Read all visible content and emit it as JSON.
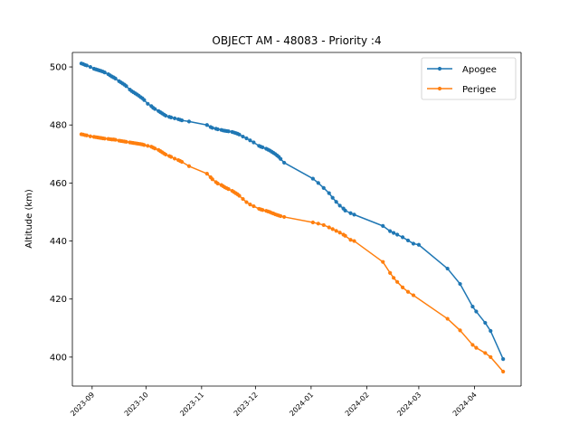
{
  "chart_data": {
    "type": "line",
    "title": "OBJECT AM - 48083 - Priority :4",
    "xlabel": "",
    "ylabel": "Altitude (km)",
    "xlim": [
      "2023-08-21",
      "2024-04-27"
    ],
    "ylim": [
      390,
      505
    ],
    "xticks": [
      "2023-09",
      "2023-10",
      "2023-11",
      "2023-12",
      "2024-01",
      "2024-02",
      "2024-03",
      "2024-04"
    ],
    "yticks": [
      400,
      420,
      440,
      460,
      480,
      500
    ],
    "grid": false,
    "legend": "top-right",
    "series": [
      {
        "name": "Apogee",
        "color": "#1f77b4",
        "marker": "circle",
        "points": [
          [
            "2023-08-26",
            501.2
          ],
          [
            "2023-08-27",
            501.0
          ],
          [
            "2023-08-28",
            500.7
          ],
          [
            "2023-08-29",
            500.5
          ],
          [
            "2023-08-31",
            500.0
          ],
          [
            "2023-09-02",
            499.4
          ],
          [
            "2023-09-03",
            499.2
          ],
          [
            "2023-09-04",
            499.0
          ],
          [
            "2023-09-05",
            498.8
          ],
          [
            "2023-09-06",
            498.6
          ],
          [
            "2023-09-07",
            498.4
          ],
          [
            "2023-09-08",
            498.1
          ],
          [
            "2023-09-10",
            497.5
          ],
          [
            "2023-09-11",
            497.1
          ],
          [
            "2023-09-12",
            496.7
          ],
          [
            "2023-09-13",
            496.4
          ],
          [
            "2023-09-14",
            496.0
          ],
          [
            "2023-09-16",
            495.1
          ],
          [
            "2023-09-17",
            494.7
          ],
          [
            "2023-09-18",
            494.3
          ],
          [
            "2023-09-19",
            493.9
          ],
          [
            "2023-09-20",
            493.4
          ],
          [
            "2023-09-22",
            492.2
          ],
          [
            "2023-09-23",
            491.7
          ],
          [
            "2023-09-24",
            491.3
          ],
          [
            "2023-09-25",
            490.9
          ],
          [
            "2023-09-26",
            490.5
          ],
          [
            "2023-09-27",
            490.1
          ],
          [
            "2023-09-28",
            489.6
          ],
          [
            "2023-09-29",
            489.2
          ],
          [
            "2023-09-30",
            488.6
          ],
          [
            "2023-10-02",
            487.3
          ],
          [
            "2023-10-04",
            486.5
          ],
          [
            "2023-10-05",
            485.9
          ],
          [
            "2023-10-06",
            485.5
          ],
          [
            "2023-10-08",
            484.8
          ],
          [
            "2023-10-09",
            484.4
          ],
          [
            "2023-10-10",
            484.0
          ],
          [
            "2023-10-11",
            483.6
          ],
          [
            "2023-10-12",
            483.2
          ],
          [
            "2023-10-14",
            482.8
          ],
          [
            "2023-10-15",
            482.6
          ],
          [
            "2023-10-17",
            482.3
          ],
          [
            "2023-10-19",
            482.0
          ],
          [
            "2023-10-20",
            481.8
          ],
          [
            "2023-10-21",
            481.6
          ],
          [
            "2023-10-25",
            481.2
          ],
          [
            "2023-11-04",
            480.0
          ],
          [
            "2023-11-06",
            479.3
          ],
          [
            "2023-11-07",
            479.0
          ],
          [
            "2023-11-09",
            478.7
          ],
          [
            "2023-11-10",
            478.5
          ],
          [
            "2023-11-12",
            478.3
          ],
          [
            "2023-11-13",
            478.1
          ],
          [
            "2023-11-14",
            478.0
          ],
          [
            "2023-11-15",
            477.9
          ],
          [
            "2023-11-16",
            477.8
          ],
          [
            "2023-11-18",
            477.6
          ],
          [
            "2023-11-19",
            477.4
          ],
          [
            "2023-11-20",
            477.2
          ],
          [
            "2023-11-21",
            477.0
          ],
          [
            "2023-11-22",
            476.7
          ],
          [
            "2023-11-24",
            476.0
          ],
          [
            "2023-11-26",
            475.4
          ],
          [
            "2023-11-28",
            474.7
          ],
          [
            "2023-11-30",
            474.0
          ],
          [
            "2023-12-03",
            472.8
          ],
          [
            "2023-12-04",
            472.5
          ],
          [
            "2023-12-05",
            472.3
          ],
          [
            "2023-12-07",
            471.8
          ],
          [
            "2023-12-08",
            471.5
          ],
          [
            "2023-12-09",
            471.2
          ],
          [
            "2023-12-10",
            470.8
          ],
          [
            "2023-12-11",
            470.4
          ],
          [
            "2023-12-12",
            470.0
          ],
          [
            "2023-12-13",
            469.5
          ],
          [
            "2023-12-14",
            469.0
          ],
          [
            "2023-12-15",
            468.3
          ],
          [
            "2023-12-17",
            467.0
          ],
          [
            "2024-01-02",
            461.5
          ],
          [
            "2024-01-05",
            460.0
          ],
          [
            "2024-01-08",
            458.3
          ],
          [
            "2024-01-11",
            456.5
          ],
          [
            "2024-01-13",
            454.9
          ],
          [
            "2024-01-15",
            453.5
          ],
          [
            "2024-01-17",
            452.2
          ],
          [
            "2024-01-19",
            451.2
          ],
          [
            "2024-01-20",
            450.5
          ],
          [
            "2024-01-23",
            449.6
          ],
          [
            "2024-01-25",
            449.1
          ],
          [
            "2024-02-10",
            445.2
          ],
          [
            "2024-02-14",
            443.4
          ],
          [
            "2024-02-16",
            442.8
          ],
          [
            "2024-02-18",
            442.2
          ],
          [
            "2024-02-21",
            441.3
          ],
          [
            "2024-02-24",
            440.2
          ],
          [
            "2024-02-27",
            439.1
          ],
          [
            "2024-03-01",
            438.7
          ],
          [
            "2024-03-17",
            430.5
          ],
          [
            "2024-03-24",
            425.2
          ],
          [
            "2024-03-31",
            417.4
          ],
          [
            "2024-04-02",
            415.7
          ],
          [
            "2024-04-07",
            411.8
          ],
          [
            "2024-04-10",
            409.0
          ],
          [
            "2024-04-17",
            399.3
          ]
        ]
      },
      {
        "name": "Perigee",
        "color": "#ff7f0e",
        "marker": "circle",
        "points": [
          [
            "2023-08-26",
            476.8
          ],
          [
            "2023-08-27",
            476.7
          ],
          [
            "2023-08-28",
            476.5
          ],
          [
            "2023-08-29",
            476.4
          ],
          [
            "2023-08-31",
            476.1
          ],
          [
            "2023-09-02",
            475.9
          ],
          [
            "2023-09-03",
            475.8
          ],
          [
            "2023-09-04",
            475.7
          ],
          [
            "2023-09-05",
            475.6
          ],
          [
            "2023-09-06",
            475.5
          ],
          [
            "2023-09-07",
            475.4
          ],
          [
            "2023-09-08",
            475.3
          ],
          [
            "2023-09-10",
            475.2
          ],
          [
            "2023-09-11",
            475.1
          ],
          [
            "2023-09-12",
            475.0
          ],
          [
            "2023-09-13",
            475.0
          ],
          [
            "2023-09-14",
            474.9
          ],
          [
            "2023-09-16",
            474.6
          ],
          [
            "2023-09-17",
            474.5
          ],
          [
            "2023-09-18",
            474.4
          ],
          [
            "2023-09-19",
            474.3
          ],
          [
            "2023-09-20",
            474.2
          ],
          [
            "2023-09-22",
            474.0
          ],
          [
            "2023-09-23",
            473.9
          ],
          [
            "2023-09-24",
            473.8
          ],
          [
            "2023-09-25",
            473.7
          ],
          [
            "2023-09-26",
            473.6
          ],
          [
            "2023-09-27",
            473.5
          ],
          [
            "2023-09-28",
            473.4
          ],
          [
            "2023-09-29",
            473.3
          ],
          [
            "2023-09-30",
            473.1
          ],
          [
            "2023-10-02",
            472.8
          ],
          [
            "2023-10-04",
            472.5
          ],
          [
            "2023-10-05",
            472.2
          ],
          [
            "2023-10-06",
            471.9
          ],
          [
            "2023-10-08",
            471.4
          ],
          [
            "2023-10-09",
            471.0
          ],
          [
            "2023-10-10",
            470.6
          ],
          [
            "2023-10-11",
            470.2
          ],
          [
            "2023-10-12",
            469.8
          ],
          [
            "2023-10-14",
            469.3
          ],
          [
            "2023-10-15",
            469.0
          ],
          [
            "2023-10-17",
            468.4
          ],
          [
            "2023-10-19",
            467.9
          ],
          [
            "2023-10-20",
            467.6
          ],
          [
            "2023-10-21",
            467.3
          ],
          [
            "2023-10-25",
            465.8
          ],
          [
            "2023-11-04",
            463.2
          ],
          [
            "2023-11-06",
            462.0
          ],
          [
            "2023-11-07",
            461.3
          ],
          [
            "2023-11-09",
            460.3
          ],
          [
            "2023-11-10",
            459.8
          ],
          [
            "2023-11-12",
            459.3
          ],
          [
            "2023-11-13",
            458.9
          ],
          [
            "2023-11-14",
            458.5
          ],
          [
            "2023-11-15",
            458.2
          ],
          [
            "2023-11-16",
            457.9
          ],
          [
            "2023-11-18",
            457.3
          ],
          [
            "2023-11-19",
            456.9
          ],
          [
            "2023-11-20",
            456.5
          ],
          [
            "2023-11-21",
            456.1
          ],
          [
            "2023-11-22",
            455.6
          ],
          [
            "2023-11-24",
            454.5
          ],
          [
            "2023-11-26",
            453.4
          ],
          [
            "2023-11-28",
            452.6
          ],
          [
            "2023-11-30",
            452.0
          ],
          [
            "2023-12-03",
            451.1
          ],
          [
            "2023-12-04",
            450.9
          ],
          [
            "2023-12-05",
            450.7
          ],
          [
            "2023-12-07",
            450.4
          ],
          [
            "2023-12-08",
            450.2
          ],
          [
            "2023-12-09",
            450.0
          ],
          [
            "2023-12-10",
            449.7
          ],
          [
            "2023-12-11",
            449.5
          ],
          [
            "2023-12-12",
            449.2
          ],
          [
            "2023-12-13",
            449.0
          ],
          [
            "2023-12-14",
            448.8
          ],
          [
            "2023-12-15",
            448.6
          ],
          [
            "2023-12-17",
            448.3
          ],
          [
            "2024-01-02",
            446.4
          ],
          [
            "2024-01-05",
            446.0
          ],
          [
            "2024-01-08",
            445.5
          ],
          [
            "2024-01-11",
            444.7
          ],
          [
            "2024-01-13",
            444.1
          ],
          [
            "2024-01-15",
            443.5
          ],
          [
            "2024-01-17",
            442.9
          ],
          [
            "2024-01-19",
            442.2
          ],
          [
            "2024-01-20",
            441.8
          ],
          [
            "2024-01-23",
            440.4
          ],
          [
            "2024-01-25",
            440.0
          ],
          [
            "2024-02-10",
            432.8
          ],
          [
            "2024-02-14",
            429.0
          ],
          [
            "2024-02-16",
            427.3
          ],
          [
            "2024-02-18",
            425.9
          ],
          [
            "2024-02-21",
            424.0
          ],
          [
            "2024-02-24",
            422.5
          ],
          [
            "2024-02-27",
            421.3
          ],
          [
            "2024-03-17",
            413.2
          ],
          [
            "2024-03-24",
            409.2
          ],
          [
            "2024-03-31",
            404.2
          ],
          [
            "2024-04-02",
            403.2
          ],
          [
            "2024-04-07",
            401.4
          ],
          [
            "2024-04-10",
            400.0
          ],
          [
            "2024-04-17",
            395.0
          ]
        ]
      }
    ]
  }
}
